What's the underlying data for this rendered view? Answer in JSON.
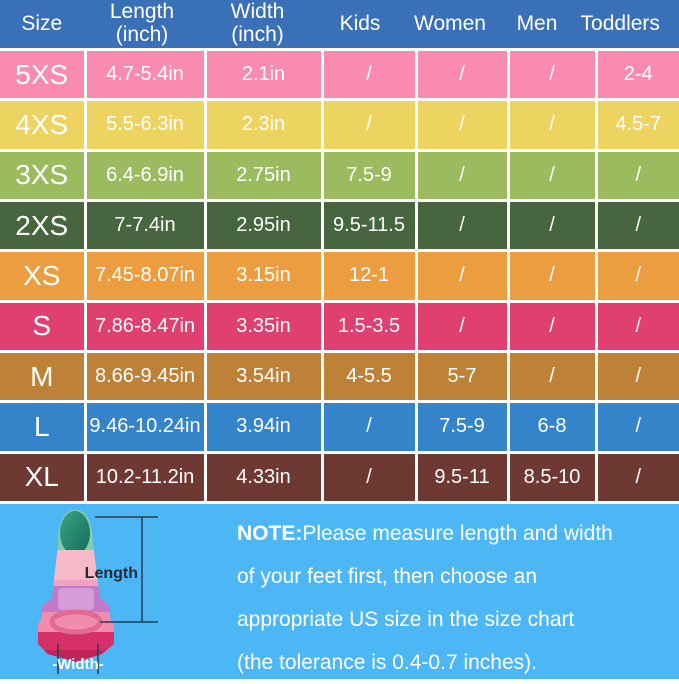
{
  "table": {
    "header_bg": "#3a70b8",
    "header_text_color": "#ffffff",
    "columns": [
      {
        "id": "size",
        "lines": [
          "Size"
        ]
      },
      {
        "id": "length",
        "lines": [
          "Length",
          "(inch)"
        ]
      },
      {
        "id": "width",
        "lines": [
          "Width",
          "(inch)"
        ]
      },
      {
        "id": "kids",
        "lines": [
          "Kids"
        ]
      },
      {
        "id": "women",
        "lines": [
          "Women"
        ]
      },
      {
        "id": "men",
        "lines": [
          "Men"
        ]
      },
      {
        "id": "toddlers",
        "lines": [
          "Toddlers"
        ]
      }
    ],
    "rows": [
      {
        "size": "5XS",
        "color": "#f98cae",
        "cells": [
          "4.7-5.4in",
          "2.1in",
          "/",
          "/",
          "/",
          "2-4"
        ]
      },
      {
        "size": "4XS",
        "color": "#edd35f",
        "cells": [
          "5.5-6.3in",
          "2.3in",
          "/",
          "/",
          "/",
          "4.5-7"
        ]
      },
      {
        "size": "3XS",
        "color": "#9cba5e",
        "cells": [
          "6.4-6.9in",
          "2.75in",
          "7.5-9",
          "/",
          "/",
          "/"
        ]
      },
      {
        "size": "2XS",
        "color": "#47663f",
        "cells": [
          "7-7.4in",
          "2.95in",
          "9.5-11.5",
          "/",
          "/",
          "/"
        ]
      },
      {
        "size": "XS",
        "color": "#ec9d3f",
        "cells": [
          "7.45-8.07in",
          "3.15in",
          "12-1",
          "/",
          "/",
          "/"
        ]
      },
      {
        "size": "S",
        "color": "#df4070",
        "cells": [
          "7.86-8.47in",
          "3.35in",
          "1.5-3.5",
          "/",
          "/",
          "/"
        ]
      },
      {
        "size": "M",
        "color": "#bd8138",
        "cells": [
          "8.66-9.45in",
          "3.54in",
          "4-5.5",
          "5-7",
          "/",
          "/"
        ]
      },
      {
        "size": "L",
        "color": "#3583c8",
        "cells": [
          "9.46-10.24in",
          "3.94in",
          "/",
          "7.5-9",
          "6-8",
          "/"
        ]
      },
      {
        "size": "XL",
        "color": "#6e3933",
        "cells": [
          "10.2-11.2in",
          "4.33in",
          "/",
          "9.5-11",
          "8.5-10",
          "/"
        ]
      }
    ]
  },
  "footer": {
    "bg": "#4db7f5",
    "note_label": "NOTE:",
    "note_lines": [
      "Please measure length and width",
      "of your feet first, then choose an",
      "appropriate US size in the size chart",
      "(the tolerance is 0.4-0.7 inches)."
    ],
    "fin": {
      "length_label": "Length",
      "width_label": "-Width-"
    }
  },
  "chart_data": {
    "type": "table",
    "columns": [
      "Size",
      "Length (inch)",
      "Width (inch)",
      "Kids",
      "Women",
      "Men",
      "Toddlers"
    ],
    "rows": [
      [
        "5XS",
        "4.7-5.4in",
        "2.1in",
        "/",
        "/",
        "/",
        "2-4"
      ],
      [
        "4XS",
        "5.5-6.3in",
        "2.3in",
        "/",
        "/",
        "/",
        "4.5-7"
      ],
      [
        "3XS",
        "6.4-6.9in",
        "2.75in",
        "7.5-9",
        "/",
        "/",
        "/"
      ],
      [
        "2XS",
        "7-7.4in",
        "2.95in",
        "9.5-11.5",
        "/",
        "/",
        "/"
      ],
      [
        "XS",
        "7.45-8.07in",
        "3.15in",
        "12-1",
        "/",
        "/",
        "/"
      ],
      [
        "S",
        "7.86-8.47in",
        "3.35in",
        "1.5-3.5",
        "/",
        "/",
        "/"
      ],
      [
        "M",
        "8.66-9.45in",
        "3.54in",
        "4-5.5",
        "5-7",
        "/",
        "/"
      ],
      [
        "L",
        "9.46-10.24in",
        "3.94in",
        "/",
        "7.5-9",
        "6-8",
        "/"
      ],
      [
        "XL",
        "10.2-11.2in",
        "4.33in",
        "/",
        "9.5-11",
        "8.5-10",
        "/"
      ]
    ],
    "note": "NOTE:Please measure length and width of your feet first, then choose an appropriate US size in the size chart (the tolerance is 0.4-0.7 inches)."
  }
}
